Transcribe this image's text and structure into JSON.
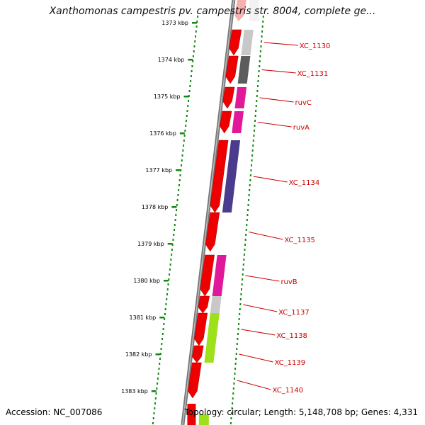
{
  "title": "Xanthomonas campestris pv. campestris str. 8004, complete ge...",
  "ticks": [
    "1373 kbp",
    "1374 kbp",
    "1375 kbp",
    "1376 kbp",
    "1377 kbp",
    "1378 kbp",
    "1379 kbp",
    "1380 kbp",
    "1381 kbp",
    "1382 kbp",
    "1383 kbp"
  ],
  "genes": [
    {
      "label": "XC_1130",
      "color": "#c8c8c8"
    },
    {
      "label": "XC_1131",
      "color": "#5c5c5c"
    },
    {
      "label": "ruvC",
      "color": "#e0199a"
    },
    {
      "label": "ruvA",
      "color": "#e0199a"
    },
    {
      "label": "XC_1134",
      "color": "#4a3b8c"
    },
    {
      "label": "XC_1135",
      "color": null
    },
    {
      "label": "ruvB",
      "color": "#e0199a"
    },
    {
      "label": "XC_1137",
      "color": "#c8c8c8"
    },
    {
      "label": "XC_1138",
      "color": "#9ee01a"
    },
    {
      "label": "XC_1139",
      "color": "#9ee01a"
    },
    {
      "label": "XC_1140",
      "color": null
    }
  ],
  "footer": {
    "accession": "Accession: NC_007086",
    "summary": "Topology: circular; Length: 5,148,708 bp; Genes: 4,331"
  },
  "colors": {
    "cds": "#ee0000",
    "label": "#cc0000",
    "tick": "#118811",
    "backbone": "#777777"
  }
}
